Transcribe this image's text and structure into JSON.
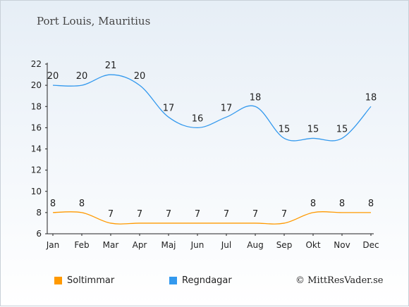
{
  "location": "Port Louis, Mauritius",
  "credit": "© MittResVader.se",
  "chart_data": {
    "type": "line",
    "categories": [
      "Jan",
      "Feb",
      "Mar",
      "Apr",
      "Maj",
      "Jun",
      "Jul",
      "Aug",
      "Sep",
      "Okt",
      "Nov",
      "Dec"
    ],
    "ylim": [
      6,
      22
    ],
    "yticks": [
      6,
      8,
      10,
      12,
      14,
      16,
      18,
      20,
      22
    ],
    "grid": false,
    "legend_position": "bottom",
    "series": [
      {
        "name": "Soltimmar",
        "color": "#ff9900",
        "values": [
          8,
          8,
          7,
          7,
          7,
          7,
          7,
          7,
          7,
          8,
          8,
          8
        ]
      },
      {
        "name": "Regndagar",
        "color": "#3399ee",
        "values": [
          20,
          20,
          21,
          20,
          17,
          16,
          17,
          18,
          15,
          15,
          15,
          18
        ]
      }
    ]
  }
}
